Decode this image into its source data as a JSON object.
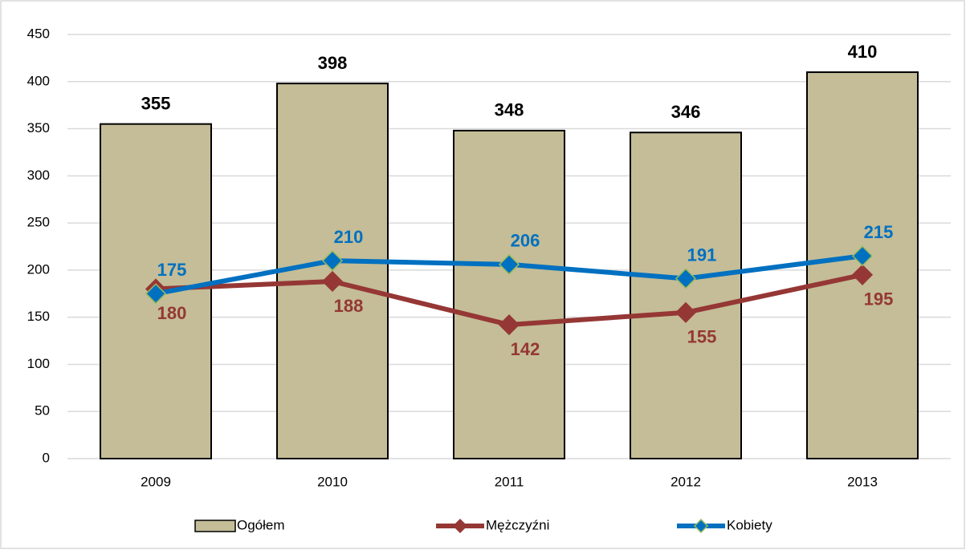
{
  "chart_data": {
    "type": "bar",
    "categories": [
      "2009",
      "2010",
      "2011",
      "2012",
      "2013"
    ],
    "series": [
      {
        "name": "Ogółem",
        "type": "bar",
        "color": "#c4bd97",
        "values": [
          355,
          398,
          348,
          346,
          410
        ]
      },
      {
        "name": "Mężczyźni",
        "type": "line",
        "color": "#953735",
        "values": [
          180,
          188,
          142,
          155,
          195
        ]
      },
      {
        "name": "Kobiety",
        "type": "line",
        "color": "#0070c0",
        "values": [
          175,
          210,
          206,
          191,
          215
        ]
      }
    ],
    "ylim": [
      0,
      450
    ],
    "yticks": [
      0,
      50,
      100,
      150,
      200,
      250,
      300,
      350,
      400,
      450
    ],
    "grid": true,
    "legend": "bottom"
  }
}
